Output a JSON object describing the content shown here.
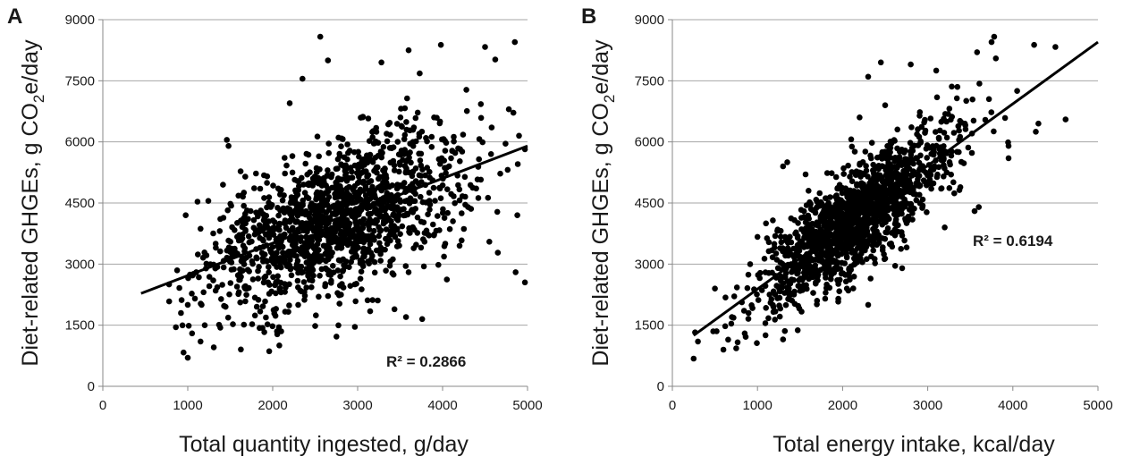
{
  "chart_data": [
    {
      "type": "scatter",
      "panel_label": "A",
      "xlabel": "Total quantity ingested, g/day",
      "ylabel": "Diet-related GHGEs, g CO2e/day",
      "ylabel_parts": {
        "before": "Diet-related GHGEs, g CO",
        "sub": "2",
        "after": "e/day"
      },
      "xlim": [
        0,
        5000
      ],
      "ylim": [
        0,
        9000
      ],
      "xticks": [
        0,
        1000,
        2000,
        3000,
        4000,
        5000
      ],
      "yticks": [
        0,
        1500,
        3000,
        4500,
        6000,
        7500,
        9000
      ],
      "grid": "horizontal",
      "trendline": {
        "x0": 450,
        "y0": 2280,
        "x1": 5000,
        "y1": 5900
      },
      "r2_label": "R² = 0.2866",
      "r2_value": 0.2866,
      "anchor_points": [
        [
          2560,
          8580
        ],
        [
          2650,
          8000
        ],
        [
          3600,
          8250
        ],
        [
          3980,
          8380
        ],
        [
          4500,
          8330
        ],
        [
          4620,
          8020
        ],
        [
          4850,
          8450
        ],
        [
          3280,
          7950
        ],
        [
          3730,
          7680
        ],
        [
          4280,
          7280
        ],
        [
          4780,
          6800
        ],
        [
          4900,
          6150
        ],
        [
          4970,
          5820
        ],
        [
          4880,
          4200
        ],
        [
          4970,
          2550
        ],
        [
          4860,
          2800
        ],
        [
          4650,
          3280
        ],
        [
          4550,
          3550
        ],
        [
          4050,
          2620
        ],
        [
          3760,
          1650
        ],
        [
          3570,
          1700
        ],
        [
          2750,
          1220
        ],
        [
          2500,
          1480
        ],
        [
          2050,
          1350
        ],
        [
          2100,
          1350
        ],
        [
          2350,
          7550
        ],
        [
          2200,
          6950
        ],
        [
          1460,
          6050
        ],
        [
          1480,
          5900
        ],
        [
          3950,
          2980
        ],
        [
          4200,
          3450
        ],
        [
          1000,
          700
        ],
        [
          950,
          830
        ],
        [
          860,
          1450
        ],
        [
          920,
          1800
        ],
        [
          780,
          2500
        ],
        [
          1050,
          1300
        ],
        [
          1150,
          1100
        ],
        [
          1200,
          1500
        ],
        [
          1300,
          2600
        ],
        [
          1000,
          2000
        ],
        [
          1100,
          2800
        ],
        [
          1500,
          3300
        ],
        [
          1700,
          2400
        ],
        [
          2300,
          2000
        ],
        [
          3200,
          3050
        ],
        [
          3600,
          2800
        ],
        [
          4300,
          4400
        ],
        [
          4100,
          5600
        ],
        [
          3900,
          6600
        ]
      ],
      "cloud": {
        "n": 1450,
        "x_mean": 2750,
        "x_sd": 780,
        "x_min": 780,
        "x_max": 4980,
        "slope": 0.795,
        "intercept": 1930,
        "resid_sd": 880,
        "y_min": 650,
        "y_max": 8600
      }
    },
    {
      "type": "scatter",
      "panel_label": "B",
      "xlabel": "Total energy intake, kcal/day",
      "ylabel": "Diet-related GHGEs, g CO2e/day",
      "ylabel_parts": {
        "before": "Diet-related GHGEs, g CO",
        "sub": "2",
        "after": "e/day"
      },
      "xlim": [
        0,
        5000
      ],
      "ylim": [
        0,
        9000
      ],
      "xticks": [
        0,
        1000,
        2000,
        3000,
        4000,
        5000
      ],
      "yticks": [
        0,
        1500,
        3000,
        4500,
        6000,
        7500,
        9000
      ],
      "grid": "horizontal",
      "trendline": {
        "x0": 250,
        "y0": 1250,
        "x1": 5000,
        "y1": 8450
      },
      "r2_label": "R² = 0.6194",
      "r2_value": 0.6194,
      "anchor_points": [
        [
          250,
          680
        ],
        [
          300,
          1100
        ],
        [
          480,
          1350
        ],
        [
          500,
          2400
        ],
        [
          600,
          900
        ],
        [
          700,
          1700
        ],
        [
          850,
          1300
        ],
        [
          1300,
          1150
        ],
        [
          1100,
          4000
        ],
        [
          1300,
          5400
        ],
        [
          1350,
          5500
        ],
        [
          3780,
          8580
        ],
        [
          3750,
          8450
        ],
        [
          3580,
          8200
        ],
        [
          3800,
          8050
        ],
        [
          4250,
          8380
        ],
        [
          4500,
          8330
        ],
        [
          4620,
          6550
        ],
        [
          4300,
          6450
        ],
        [
          4270,
          6250
        ],
        [
          3950,
          5600
        ],
        [
          3950,
          5900
        ],
        [
          3600,
          4400
        ],
        [
          3550,
          4300
        ],
        [
          2700,
          3700
        ],
        [
          2300,
          2000
        ],
        [
          2800,
          7900
        ],
        [
          2300,
          7600
        ],
        [
          2450,
          7950
        ],
        [
          3100,
          7750
        ],
        [
          4050,
          7250
        ],
        [
          3720,
          7050
        ],
        [
          2050,
          2400
        ],
        [
          1700,
          2100
        ],
        [
          1950,
          2150
        ],
        [
          2700,
          2900
        ],
        [
          3200,
          3900
        ],
        [
          2200,
          6600
        ],
        [
          2500,
          6900
        ],
        [
          1600,
          4800
        ]
      ],
      "cloud": {
        "n": 1450,
        "x_mean": 2150,
        "x_sd": 560,
        "x_min": 250,
        "x_max": 4650,
        "slope": 1.516,
        "intercept": 870,
        "resid_sd": 620,
        "y_min": 650,
        "y_max": 8600
      }
    }
  ]
}
